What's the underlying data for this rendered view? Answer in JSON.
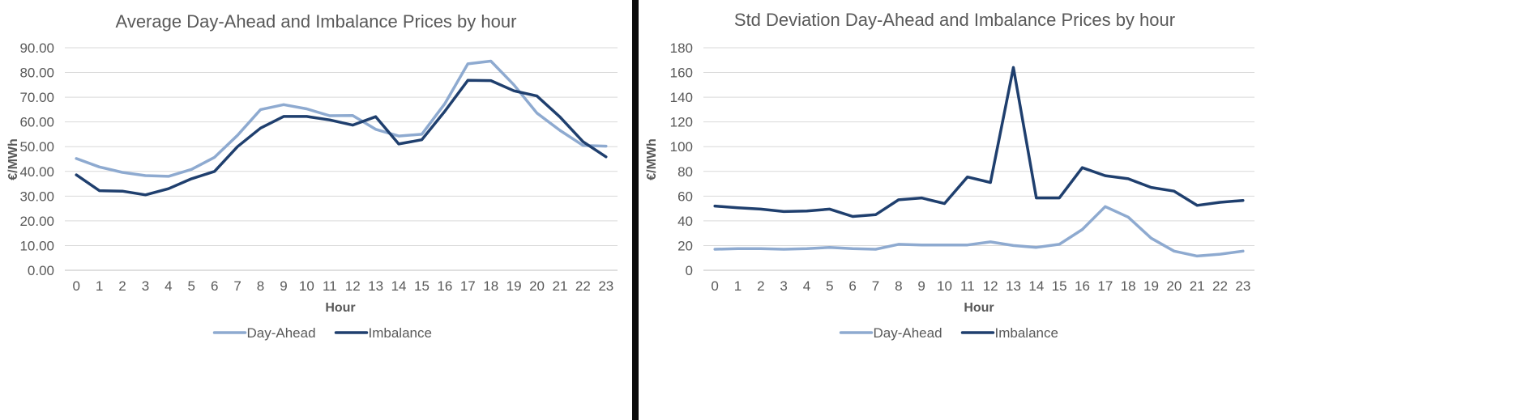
{
  "chart_data": [
    {
      "type": "line",
      "title": "Average Day-Ahead and Imbalance Prices by hour",
      "xlabel": "Hour",
      "ylabel": "€/MWh",
      "categories": [
        "0",
        "1",
        "2",
        "3",
        "4",
        "5",
        "6",
        "7",
        "8",
        "9",
        "10",
        "11",
        "12",
        "13",
        "14",
        "15",
        "16",
        "17",
        "18",
        "19",
        "20",
        "21",
        "22",
        "23"
      ],
      "ylim": [
        0,
        90
      ],
      "yticks": [
        "0.00",
        "10.00",
        "20.00",
        "30.00",
        "40.00",
        "50.00",
        "60.00",
        "70.00",
        "80.00",
        "90.00"
      ],
      "grid": true,
      "legend_position": "bottom",
      "series": [
        {
          "name": "Day-Ahead",
          "color": "#8eaad0",
          "values": [
            45.2,
            41.8,
            39.6,
            38.3,
            38.0,
            40.8,
            45.7,
            54.6,
            65.0,
            67.0,
            65.3,
            62.5,
            62.6,
            57.0,
            54.3,
            55.0,
            67.4,
            83.5,
            84.6,
            75.0,
            63.6,
            56.6,
            50.5,
            50.2
          ]
        },
        {
          "name": "Imbalance",
          "color": "#1f3f6e",
          "values": [
            38.6,
            32.2,
            32.0,
            30.5,
            33.0,
            37.0,
            40.0,
            50.0,
            57.5,
            62.2,
            62.2,
            60.8,
            58.7,
            62.1,
            51.1,
            52.8,
            64.3,
            76.8,
            76.7,
            72.6,
            70.5,
            62.0,
            52.0,
            45.9
          ]
        }
      ]
    },
    {
      "type": "line",
      "title": "Std Deviation Day-Ahead and Imbalance Prices by hour",
      "xlabel": "Hour",
      "ylabel": "€/MWh",
      "categories": [
        "0",
        "1",
        "2",
        "3",
        "4",
        "5",
        "6",
        "7",
        "8",
        "9",
        "10",
        "11",
        "12",
        "13",
        "14",
        "15",
        "16",
        "17",
        "18",
        "19",
        "20",
        "21",
        "22",
        "23"
      ],
      "ylim": [
        0,
        180
      ],
      "yticks": [
        "0",
        "20",
        "40",
        "60",
        "80",
        "100",
        "120",
        "140",
        "160",
        "180"
      ],
      "grid": true,
      "legend_position": "bottom",
      "series": [
        {
          "name": "Day-Ahead",
          "color": "#8eaad0",
          "values": [
            17.0,
            17.5,
            17.5,
            17.0,
            17.5,
            18.5,
            17.5,
            17.0,
            21.0,
            20.5,
            20.5,
            20.5,
            23.0,
            20.0,
            18.5,
            21.0,
            33.0,
            51.5,
            43.0,
            26.0,
            15.5,
            11.5,
            13.0,
            15.5
          ]
        },
        {
          "name": "Imbalance",
          "color": "#1f3f6e",
          "values": [
            52.0,
            50.5,
            49.5,
            47.5,
            48.0,
            49.5,
            43.5,
            45.0,
            57.0,
            58.5,
            54.0,
            75.5,
            71.0,
            164.0,
            58.5,
            58.5,
            83.0,
            76.5,
            74.0,
            67.0,
            64.0,
            52.5,
            55.0,
            56.5
          ]
        }
      ]
    }
  ]
}
